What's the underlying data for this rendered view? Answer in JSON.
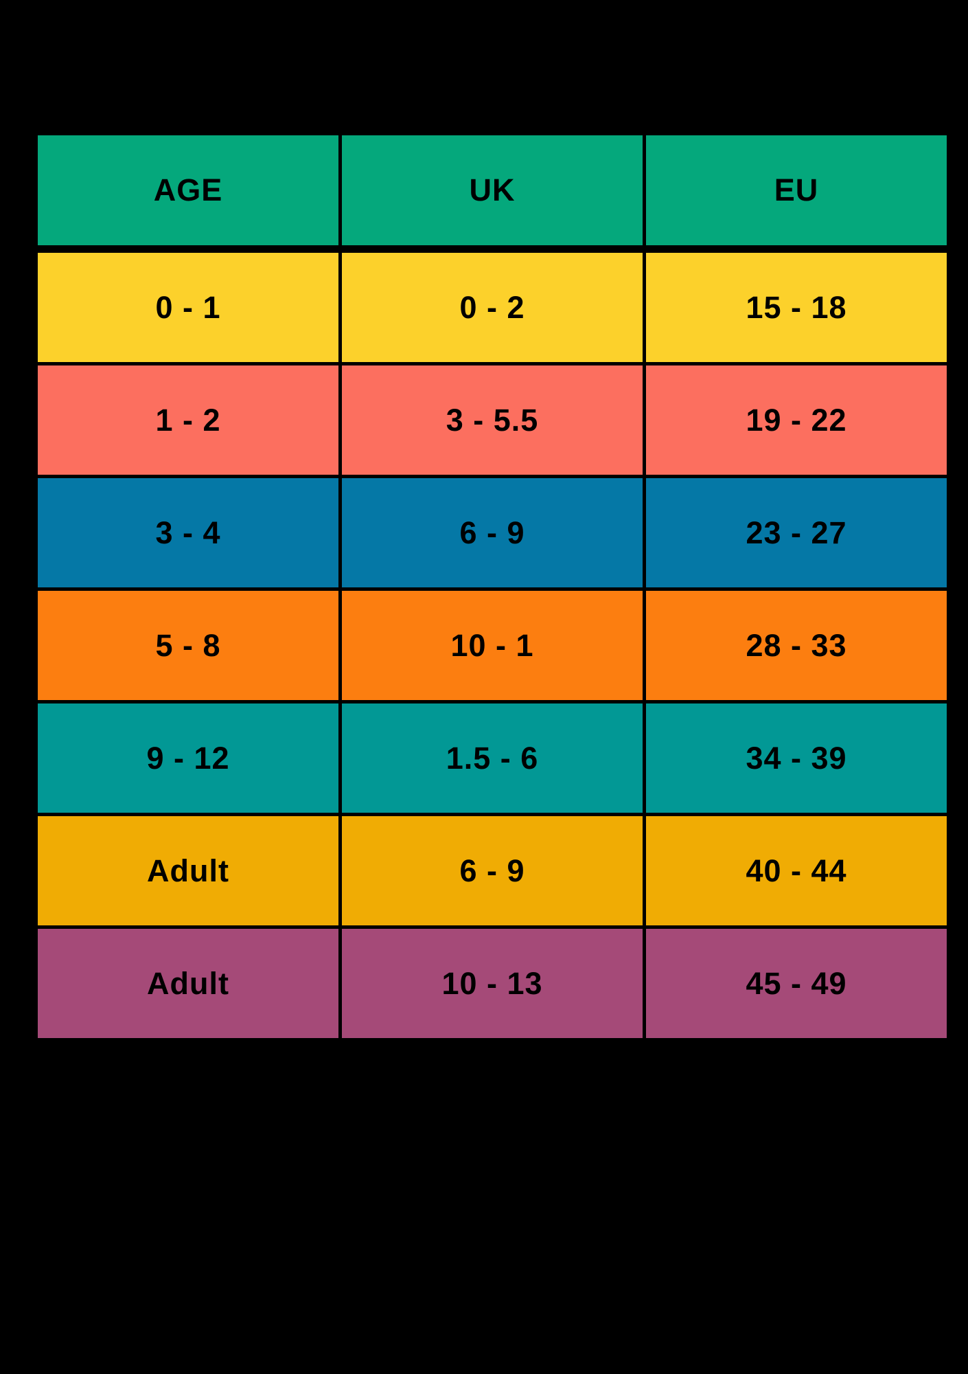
{
  "background": "#000000",
  "text_color": "#000000",
  "header": {
    "age": "AGE",
    "uk": "UK",
    "eu": "EU",
    "color": "#05A87C"
  },
  "rows": [
    {
      "age": "0 - 1",
      "uk": "0 - 2",
      "eu": "15 - 18",
      "color": "#FCD12B"
    },
    {
      "age": "1 - 2",
      "uk": "3 - 5.5",
      "eu": "19 - 22",
      "color": "#FC6F5F"
    },
    {
      "age": "3 - 4",
      "uk": "6 - 9",
      "eu": "23 - 27",
      "color": "#0578A6"
    },
    {
      "age": "5 - 8",
      "uk": "10 - 1",
      "eu": "28 - 33",
      "color": "#FC7E10"
    },
    {
      "age": "9 - 12",
      "uk": "1.5 - 6",
      "eu": "34 - 39",
      "color": "#029895"
    },
    {
      "age": "Adult",
      "uk": "6 - 9",
      "eu": "40 - 44",
      "color": "#F0AC04"
    },
    {
      "age": "Adult",
      "uk": "10 - 13",
      "eu": "45 - 49",
      "color": "#A54A78"
    }
  ],
  "chart_data": {
    "type": "table",
    "title": "",
    "columns": [
      "AGE",
      "UK",
      "EU"
    ],
    "rows": [
      [
        "0 - 1",
        "0 - 2",
        "15 - 18"
      ],
      [
        "1 - 2",
        "3 - 5.5",
        "19 - 22"
      ],
      [
        "3 - 4",
        "6 - 9",
        "23 - 27"
      ],
      [
        "5 - 8",
        "10 - 1",
        "28 - 33"
      ],
      [
        "9 - 12",
        "1.5 - 6",
        "34 - 39"
      ],
      [
        "Adult",
        "6 - 9",
        "40 - 44"
      ],
      [
        "Adult",
        "10 - 13",
        "45 - 49"
      ]
    ],
    "header_color": "#05A87C",
    "row_colors": [
      "#FCD12B",
      "#FC6F5F",
      "#0578A6",
      "#FC7E10",
      "#029895",
      "#F0AC04",
      "#A54A78"
    ],
    "grid": "black gaps between cells",
    "background": "#000000"
  }
}
